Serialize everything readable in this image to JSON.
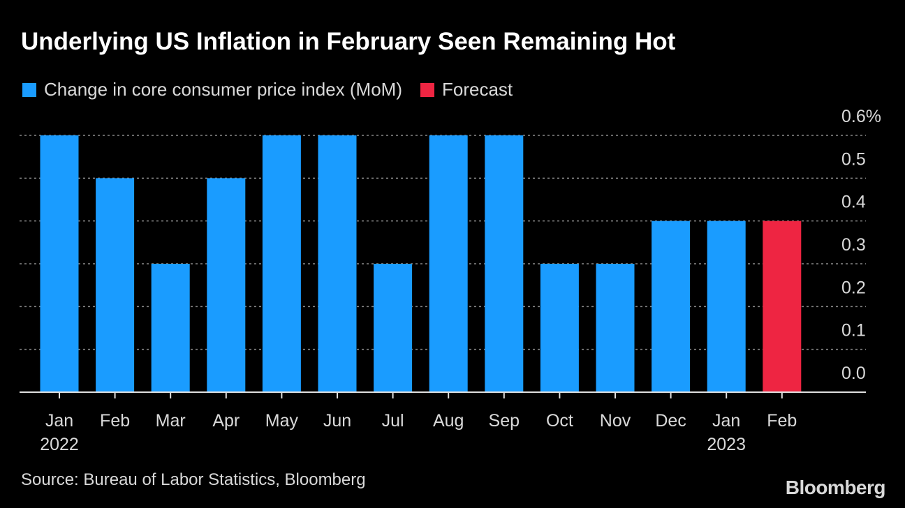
{
  "title": "Underlying US Inflation in February Seen Remaining Hot",
  "legend": [
    {
      "label": "Change in core consumer price index (MoM)",
      "color": "#1a9cff"
    },
    {
      "label": "Forecast",
      "color": "#ee2542"
    }
  ],
  "source": "Source: Bureau of Labor Statistics, Bloomberg",
  "brand": "Bloomberg",
  "chart_data": {
    "type": "bar",
    "categories": [
      "Jan",
      "Feb",
      "Mar",
      "Apr",
      "May",
      "Jun",
      "Jul",
      "Aug",
      "Sep",
      "Oct",
      "Nov",
      "Dec",
      "Jan",
      "Feb"
    ],
    "year_labels": [
      "2022",
      "",
      "",
      "",
      "",
      "",
      "",
      "",
      "",
      "",
      "",
      "",
      "2023",
      ""
    ],
    "series": [
      {
        "name": "Change in core consumer price index (MoM)",
        "values": [
          0.6,
          0.5,
          0.3,
          0.5,
          0.6,
          0.6,
          0.3,
          0.6,
          0.6,
          0.3,
          0.3,
          0.4,
          0.4,
          null
        ],
        "color": "#1a9cff"
      },
      {
        "name": "Forecast",
        "values": [
          null,
          null,
          null,
          null,
          null,
          null,
          null,
          null,
          null,
          null,
          null,
          null,
          null,
          0.4
        ],
        "color": "#ee2542"
      }
    ],
    "ylim": [
      0,
      0.6
    ],
    "yticks": [
      "0.0",
      "0.1",
      "0.2",
      "0.3",
      "0.4",
      "0.5",
      "0.6%"
    ],
    "ytick_values": [
      0,
      0.1,
      0.2,
      0.3,
      0.4,
      0.5,
      0.6
    ],
    "y_axis_side": "right",
    "grid": true,
    "legend_position": "top-left"
  }
}
